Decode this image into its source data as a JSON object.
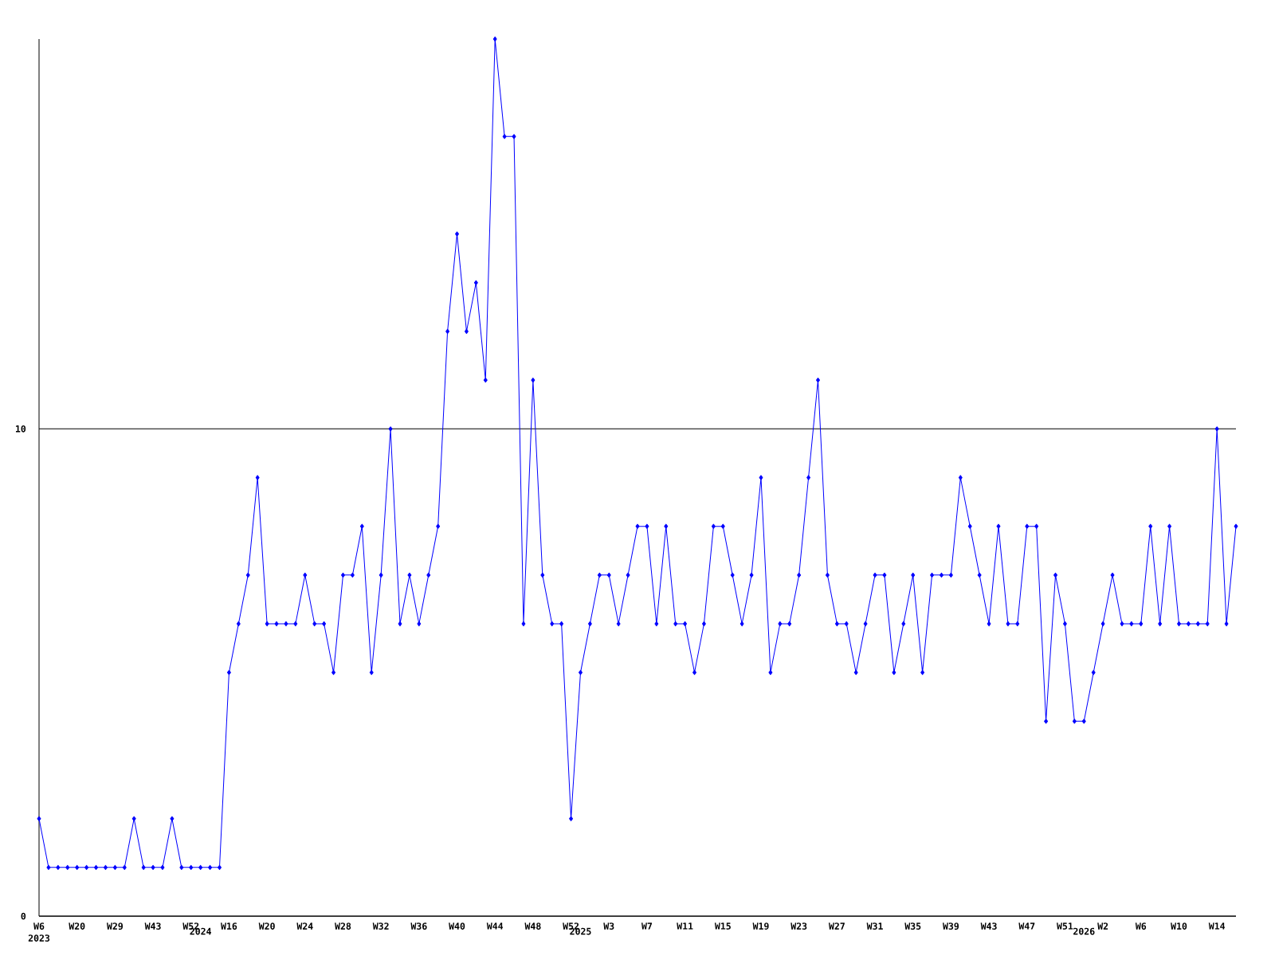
{
  "chart_data": {
    "type": "line",
    "categories": [
      "W6 2023",
      null,
      null,
      null,
      "W20",
      null,
      null,
      null,
      "W29",
      null,
      null,
      null,
      "W43",
      null,
      null,
      null,
      "W52",
      "2024",
      null,
      null,
      "W16",
      null,
      null,
      null,
      "W20",
      null,
      null,
      null,
      "W24",
      null,
      null,
      null,
      "W28",
      null,
      null,
      null,
      "W32",
      null,
      null,
      null,
      "W36",
      null,
      null,
      null,
      "W40",
      null,
      null,
      null,
      "W44",
      null,
      null,
      null,
      "W48",
      null,
      null,
      null,
      "W52",
      "2025",
      null,
      null,
      "W3",
      null,
      null,
      null,
      "W7",
      null,
      null,
      null,
      "W11",
      null,
      null,
      null,
      "W15",
      null,
      null,
      null,
      "W19",
      null,
      null,
      null,
      "W23",
      null,
      null,
      null,
      "W27",
      null,
      null,
      null,
      "W31",
      null,
      null,
      null,
      "W35",
      null,
      null,
      null,
      "W39",
      null,
      null,
      null,
      "W43",
      null,
      null,
      null,
      "W47",
      null,
      null,
      null,
      "W51",
      null,
      "2026",
      null,
      "W2",
      null,
      null,
      null,
      "W6",
      null,
      null,
      null,
      "W10",
      null,
      null,
      null,
      "W14",
      null,
      null
    ],
    "series": [
      {
        "color": "#0000ff",
        "values": [
          2,
          1,
          1,
          1,
          1,
          1,
          1,
          1,
          1,
          1,
          2,
          1,
          1,
          1,
          2,
          1,
          1,
          1,
          1,
          1,
          5,
          6,
          7,
          9,
          6,
          6,
          6,
          6,
          7,
          6,
          6,
          5,
          7,
          7,
          8,
          5,
          7,
          10,
          6,
          7,
          6,
          7,
          8,
          12,
          14,
          12,
          13,
          11,
          18,
          16,
          16,
          6,
          11,
          7,
          6,
          6,
          2,
          5,
          6,
          7,
          7,
          6,
          7,
          8,
          8,
          6,
          8,
          6,
          6,
          5,
          6,
          8,
          8,
          7,
          6,
          7,
          9,
          5,
          6,
          6,
          7,
          9,
          11,
          7,
          6,
          6,
          5,
          6,
          7,
          7,
          5,
          6,
          7,
          5,
          7,
          7,
          7,
          9,
          8,
          7,
          6,
          8,
          6,
          6,
          8,
          8,
          4,
          7,
          6,
          4,
          4,
          5,
          6,
          7,
          6,
          6,
          6,
          8,
          6,
          8,
          6,
          6,
          6,
          6,
          10,
          6,
          8
        ]
      }
    ],
    "ylim": [
      0,
      18
    ],
    "yticks": [
      0,
      10
    ],
    "grid": "y",
    "marker": "diamond",
    "line_style": "solid"
  }
}
